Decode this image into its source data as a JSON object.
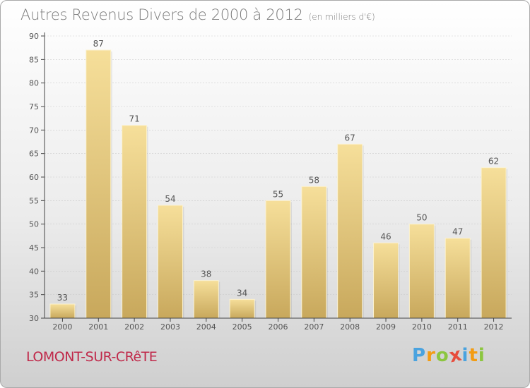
{
  "title": "Autres Revenus Divers de 2000 à 2012",
  "unit_note": "(en milliers d'€)",
  "commune": "LOMONT-SUR-CRêTE",
  "logo": {
    "letters": [
      "P",
      "r",
      "o",
      "x",
      "i",
      "t",
      "i"
    ],
    "colors": [
      "#4aa3df",
      "#f39c12",
      "#8cc63f",
      "#e74c3c",
      "#4aa3df",
      "#f39c12",
      "#8cc63f"
    ]
  },
  "colors": {
    "bar_top": "#f6df9a",
    "bar_bottom": "#c8a85c",
    "axis": "#444444",
    "grid": "#cccccc",
    "commune": "#c0294a"
  },
  "chart_data": {
    "type": "bar",
    "title": "Autres Revenus Divers de 2000 à 2012",
    "xlabel": "",
    "ylabel": "",
    "categories": [
      "2000",
      "2001",
      "2002",
      "2003",
      "2004",
      "2005",
      "2006",
      "2007",
      "2008",
      "2009",
      "2010",
      "2011",
      "2012"
    ],
    "values": [
      33,
      87,
      71,
      54,
      38,
      34,
      55,
      58,
      67,
      46,
      50,
      47,
      62
    ],
    "ylim": [
      30,
      90
    ],
    "yticks": [
      30,
      35,
      40,
      45,
      50,
      55,
      60,
      65,
      70,
      75,
      80,
      85,
      90
    ],
    "grid": true,
    "data_labels": true
  }
}
